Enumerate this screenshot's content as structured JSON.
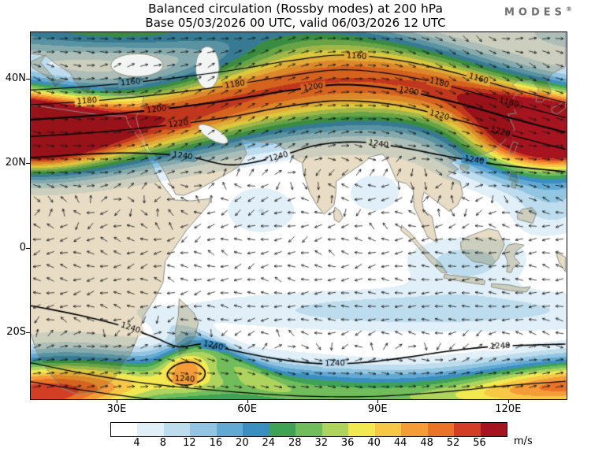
{
  "title": {
    "line1": "Balanced circulation (Rossby modes) at 200 hPa",
    "line2": "Base 05/03/2026 00 UTC, valid 06/03/2026 12 UTC"
  },
  "logo": {
    "text": "MODES",
    "registered": "®"
  },
  "axes": {
    "y_ticks": [
      {
        "label": "40N",
        "lat": 40
      },
      {
        "label": "20N",
        "lat": 20
      },
      {
        "label": "0",
        "lat": 0
      },
      {
        "label": "20S",
        "lat": -20
      }
    ],
    "x_ticks": [
      {
        "label": "30E",
        "lon": 30
      },
      {
        "label": "60E",
        "lon": 60
      },
      {
        "label": "90E",
        "lon": 90
      },
      {
        "label": "120E",
        "lon": 120
      }
    ]
  },
  "colorbar": {
    "unit": "m/s",
    "tick_labels": [
      4,
      8,
      12,
      16,
      20,
      24,
      28,
      32,
      36,
      40,
      44,
      48,
      52,
      56
    ]
  },
  "chart_data": {
    "type": "heatmap",
    "title": "Balanced circulation (Rossby modes) at 200 hPa",
    "subtitle": "Base 05/03/2026 00 UTC, valid 06/03/2026 12 UTC",
    "variable": "balanced wind speed (Rossby modes)",
    "level_hpa": 200,
    "unit": "m/s",
    "map_extent": {
      "lon_min": 10.1,
      "lon_max": 133.3,
      "lat_min": -35.6,
      "lat_max": 51.2
    },
    "shade_levels": [
      4,
      8,
      12,
      16,
      20,
      24,
      28,
      32,
      36,
      40,
      44,
      48,
      52,
      56
    ],
    "palette": [
      "#ffffff",
      "#e1eff8",
      "#bddcee",
      "#92c5e1",
      "#62aad3",
      "#3b8ec0",
      "#3fa254",
      "#72bd5b",
      "#aed45d",
      "#f1e94f",
      "#f7c845",
      "#f39c38",
      "#ea7327",
      "#d33f25",
      "#a61420"
    ],
    "legend_position": "bottom",
    "grid": false,
    "contours": [
      {
        "value": 1160,
        "width": 1.2,
        "points": [
          [
            10,
            37.5
          ],
          [
            25,
            38.5
          ],
          [
            40,
            40
          ],
          [
            55,
            42
          ],
          [
            70,
            44.5
          ],
          [
            82,
            45.8
          ],
          [
            95,
            44.5
          ],
          [
            108,
            41.5
          ],
          [
            120,
            38
          ],
          [
            133,
            34.5
          ]
        ],
        "labels": [
          [
            33,
            39.3
          ],
          [
            85,
            45.5
          ],
          [
            113,
            40.2
          ]
        ]
      },
      {
        "value": 1180,
        "width": 1.2,
        "points": [
          [
            10,
            34
          ],
          [
            25,
            35
          ],
          [
            40,
            36.5
          ],
          [
            55,
            38.5
          ],
          [
            70,
            41
          ],
          [
            82,
            42.3
          ],
          [
            95,
            41
          ],
          [
            108,
            38
          ],
          [
            120,
            34.5
          ],
          [
            133,
            31
          ]
        ],
        "labels": [
          [
            23,
            34.9
          ],
          [
            57,
            38.8
          ],
          [
            104,
            39.2
          ],
          [
            120,
            34.5
          ]
        ]
      },
      {
        "value": 1200,
        "width": 2.0,
        "points": [
          [
            10,
            30.5
          ],
          [
            25,
            31.5
          ],
          [
            40,
            33
          ],
          [
            55,
            35
          ],
          [
            70,
            37.5
          ],
          [
            82,
            38.8
          ],
          [
            95,
            37.5
          ],
          [
            108,
            34.5
          ],
          [
            120,
            31
          ],
          [
            133,
            27.5
          ]
        ],
        "labels": [
          [
            39,
            32.9
          ],
          [
            75,
            38.2
          ],
          [
            97,
            37.2
          ]
        ]
      },
      {
        "value": 1220,
        "width": 1.4,
        "points": [
          [
            10,
            26.5
          ],
          [
            25,
            27.5
          ],
          [
            40,
            29
          ],
          [
            55,
            31
          ],
          [
            70,
            33.8
          ],
          [
            82,
            35
          ],
          [
            95,
            33.8
          ],
          [
            108,
            30.5
          ],
          [
            120,
            27
          ],
          [
            133,
            23.5
          ]
        ],
        "labels": [
          [
            44,
            29.5
          ],
          [
            104,
            31.5
          ],
          [
            118,
            27.6
          ]
        ]
      },
      {
        "value": 1240,
        "width": 1.6,
        "points": [
          [
            10,
            21.5
          ],
          [
            22,
            22.3
          ],
          [
            34,
            22.6
          ],
          [
            46,
            21.8
          ],
          [
            56,
            19.8
          ],
          [
            66,
            21.5
          ],
          [
            76,
            24.5
          ],
          [
            86,
            25.2
          ],
          [
            96,
            23.8
          ],
          [
            106,
            21.8
          ],
          [
            118,
            19.8
          ],
          [
            133,
            18.2
          ]
        ],
        "labels": [
          [
            45,
            21.9
          ],
          [
            67,
            21.7
          ],
          [
            90,
            24.7
          ],
          [
            112,
            20.9
          ]
        ]
      },
      {
        "value": 1240,
        "width": 1.6,
        "points": [
          [
            10,
            -13.5
          ],
          [
            20,
            -15.5
          ],
          [
            30,
            -18
          ],
          [
            38,
            -20.8
          ],
          [
            44,
            -23.2
          ],
          [
            50,
            -22.6
          ],
          [
            57,
            -24.2
          ],
          [
            66,
            -26
          ],
          [
            76,
            -27.2
          ],
          [
            86,
            -27
          ],
          [
            96,
            -25.8
          ],
          [
            106,
            -24.3
          ],
          [
            116,
            -23.2
          ],
          [
            126,
            -22.8
          ],
          [
            133,
            -22.6
          ]
        ],
        "labels": [
          [
            33,
            -18.8
          ],
          [
            52,
            -23
          ],
          [
            80,
            -27.2
          ],
          [
            118,
            -23.1
          ]
        ]
      },
      {
        "value": 1240,
        "width": 1.6,
        "closed": true,
        "points": [
          [
            41.5,
            -29.5
          ],
          [
            44,
            -27.3
          ],
          [
            47.5,
            -27
          ],
          [
            50,
            -28.8
          ],
          [
            49.5,
            -31
          ],
          [
            46,
            -32.3
          ],
          [
            42.8,
            -31.6
          ]
        ],
        "labels": [
          [
            45.5,
            -30.9
          ]
        ]
      },
      {
        "value": 1220,
        "width": 1.2,
        "points": [
          [
            10,
            -27
          ],
          [
            22,
            -29.5
          ],
          [
            36,
            -31.8
          ],
          [
            52,
            -33.5
          ],
          [
            70,
            -34.8
          ],
          [
            88,
            -35
          ],
          [
            104,
            -34
          ],
          [
            120,
            -32.4
          ],
          [
            133,
            -31.4
          ]
        ],
        "labels": []
      },
      {
        "value": 1200,
        "width": 1.2,
        "points": [
          [
            10,
            -31.5
          ],
          [
            22,
            -33.5
          ],
          [
            34,
            -35.2
          ],
          [
            44,
            -36.4
          ]
        ],
        "labels": []
      }
    ]
  }
}
